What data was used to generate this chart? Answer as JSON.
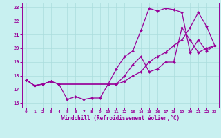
{
  "xlabel": "Windchill (Refroidissement éolien,°C)",
  "bg_color": "#c8f0f0",
  "line_color": "#990099",
  "grid_color": "#aadddd",
  "xlim": [
    -0.5,
    23.5
  ],
  "ylim": [
    15.7,
    23.3
  ],
  "xticks": [
    0,
    1,
    2,
    3,
    4,
    5,
    6,
    7,
    8,
    9,
    10,
    11,
    12,
    13,
    14,
    15,
    16,
    17,
    18,
    19,
    20,
    21,
    22,
    23
  ],
  "yticks": [
    16,
    17,
    18,
    19,
    20,
    21,
    22,
    23
  ],
  "line1_x": [
    0,
    1,
    2,
    3,
    4,
    5,
    6,
    7,
    8,
    9,
    10,
    11,
    12,
    13,
    14,
    15,
    16,
    17,
    18,
    19,
    20,
    21,
    22,
    23
  ],
  "line1_y": [
    17.7,
    17.3,
    17.4,
    17.6,
    17.4,
    16.3,
    16.5,
    16.3,
    16.4,
    16.4,
    17.4,
    17.4,
    18.0,
    18.8,
    19.4,
    18.3,
    18.5,
    19.0,
    19.0,
    21.5,
    20.6,
    19.7,
    20.0,
    20.2
  ],
  "line2_x": [
    0,
    1,
    2,
    3,
    4,
    10,
    11,
    12,
    13,
    14,
    15,
    16,
    17,
    18,
    19,
    20,
    21,
    22,
    23
  ],
  "line2_y": [
    17.7,
    17.3,
    17.4,
    17.6,
    17.4,
    17.4,
    18.5,
    19.4,
    19.8,
    21.3,
    22.9,
    22.7,
    22.9,
    22.8,
    22.6,
    19.7,
    20.6,
    19.8,
    20.2
  ],
  "line3_x": [
    0,
    1,
    2,
    3,
    4,
    10,
    11,
    12,
    13,
    14,
    15,
    16,
    17,
    18,
    19,
    20,
    21,
    22,
    23
  ],
  "line3_y": [
    17.7,
    17.3,
    17.4,
    17.6,
    17.4,
    17.4,
    17.4,
    17.6,
    18.0,
    18.3,
    19.0,
    19.4,
    19.7,
    20.2,
    20.6,
    21.5,
    22.6,
    21.6,
    20.2
  ]
}
